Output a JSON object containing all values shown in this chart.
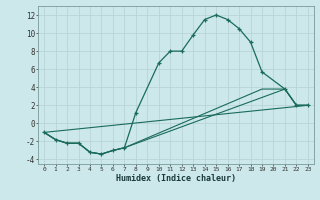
{
  "xlabel": "Humidex (Indice chaleur)",
  "bg_color": "#cde8ea",
  "grid_color": "#b8d4d6",
  "line_color": "#1a6b5a",
  "xlim": [
    -0.5,
    23.5
  ],
  "ylim": [
    -4.5,
    13
  ],
  "xticks": [
    0,
    1,
    2,
    3,
    4,
    5,
    6,
    7,
    8,
    9,
    10,
    11,
    12,
    13,
    14,
    15,
    16,
    17,
    18,
    19,
    20,
    21,
    22,
    23
  ],
  "yticks": [
    -4,
    -2,
    0,
    2,
    4,
    6,
    8,
    10,
    12
  ],
  "line1_x": [
    0,
    1,
    2,
    3,
    4,
    5,
    6,
    7,
    8,
    10,
    11,
    12,
    13,
    14,
    15,
    16,
    17,
    18,
    19,
    21,
    22,
    23
  ],
  "line1_y": [
    -1.0,
    -1.8,
    -2.2,
    -2.2,
    -3.2,
    -3.4,
    -3.0,
    -2.7,
    1.2,
    6.7,
    8.0,
    8.0,
    9.8,
    11.5,
    12.0,
    11.5,
    10.5,
    9.0,
    5.7,
    3.8,
    2.0,
    2.0
  ],
  "line2_x": [
    0,
    23
  ],
  "line2_y": [
    -1.0,
    2.0
  ],
  "line3_x": [
    0,
    1,
    2,
    3,
    4,
    5,
    6,
    7,
    19,
    21,
    22,
    23
  ],
  "line3_y": [
    -1.0,
    -1.8,
    -2.2,
    -2.2,
    -3.2,
    -3.4,
    -3.0,
    -2.7,
    3.8,
    3.8,
    2.0,
    2.0
  ],
  "line4_x": [
    0,
    1,
    2,
    3,
    4,
    5,
    6,
    7,
    21,
    22,
    23
  ],
  "line4_y": [
    -1.0,
    -1.8,
    -2.2,
    -2.2,
    -3.2,
    -3.4,
    -3.0,
    -2.7,
    3.8,
    2.0,
    2.0
  ]
}
